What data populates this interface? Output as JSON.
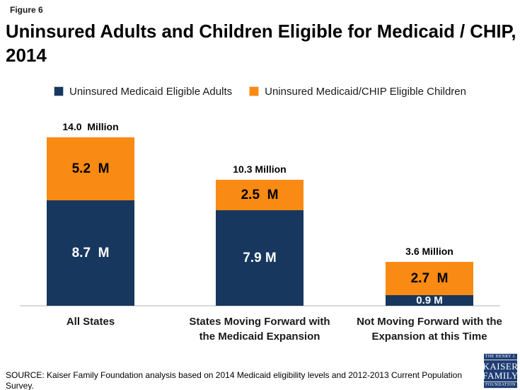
{
  "figure_label": "Figure 6",
  "title": "Uninsured Adults and Children Eligible for Medicaid / CHIP, 2014",
  "title_lines": [
    "Uninsured Adults and Children Eligible for Medicaid / CHIP,",
    "2014"
  ],
  "legend": [
    {
      "label": "Uninsured Medicaid Eligible Adults",
      "color": "#17375e",
      "border": "#b9c6d4"
    },
    {
      "label": "Uninsured Medicaid/CHIP Eligible Children",
      "color": "#f98a14",
      "border": "#fccf9e"
    }
  ],
  "chart_data": {
    "type": "bar",
    "stacked": true,
    "title": "Uninsured Adults and Children Eligible for Medicaid / CHIP, 2014",
    "unit": "millions of people",
    "categories": [
      "All States",
      "States Moving Forward with the Medicaid Expansion",
      "Not Moving Forward with the Expansion at this Time"
    ],
    "category_label_lines": [
      [
        "All States"
      ],
      [
        "States Moving Forward with",
        "the Medicaid Expansion"
      ],
      [
        "Not Moving Forward with the",
        "Expansion at this Time"
      ]
    ],
    "series": [
      {
        "name": "Uninsured Medicaid Eligible Adults",
        "color": "#17375e",
        "values": [
          8.7,
          7.9,
          0.9
        ],
        "value_labels": [
          "8.7  M",
          "7.9 M",
          "0.9 M"
        ],
        "label_color": "#ffffff"
      },
      {
        "name": "Uninsured Medicaid/CHIP Eligible Children",
        "color": "#f98a14",
        "values": [
          5.2,
          2.5,
          2.7
        ],
        "value_labels": [
          "5.2  M",
          "2.5  M",
          "2.7  M"
        ],
        "label_color": "#000000"
      }
    ],
    "totals": [
      14.0,
      10.3,
      3.6
    ],
    "total_labels": [
      "14.0  Million",
      "10.3 Million",
      "3.6 Million"
    ],
    "ylim": [
      0,
      14.0
    ],
    "grid": false,
    "legend_position": "top"
  },
  "source": "SOURCE: Kaiser Family Foundation analysis based on 2014 Medicaid eligibility levels and 2012-2013 Current Population Survey.",
  "logo": {
    "line1": "THE HENRY J.",
    "line2": "KAISER",
    "line3": "FAMILY",
    "line4": "FOUNDATION",
    "bg": "#1f3d73"
  },
  "colors": {
    "adults": "#17375e",
    "children": "#f98a14",
    "axis_line": "#d9d9d9"
  }
}
